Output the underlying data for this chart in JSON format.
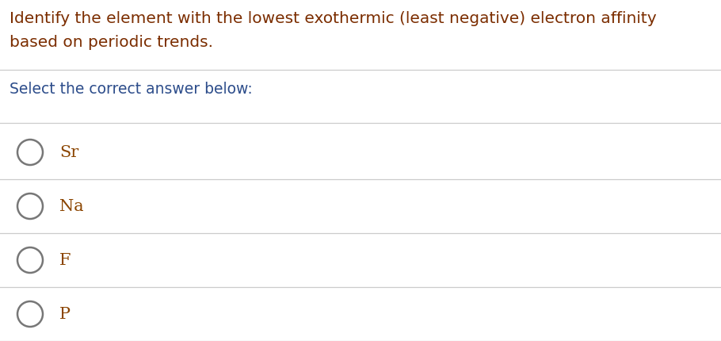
{
  "background_color": "#ffffff",
  "question_line1": "Identify the element with the lowest exothermic (least negative) electron affinity",
  "question_line2": "based on periodic trends.",
  "subheading": "Select the correct answer below:",
  "options": [
    "Sr",
    "Na",
    "F",
    "P"
  ],
  "question_color": "#7b2d00",
  "subheading_color": "#2d4d8b",
  "option_color": "#8b4500",
  "divider_color": "#cccccc",
  "circle_edge_color": "#777777",
  "fig_width": 9.1,
  "fig_height": 4.3,
  "dpi": 100
}
